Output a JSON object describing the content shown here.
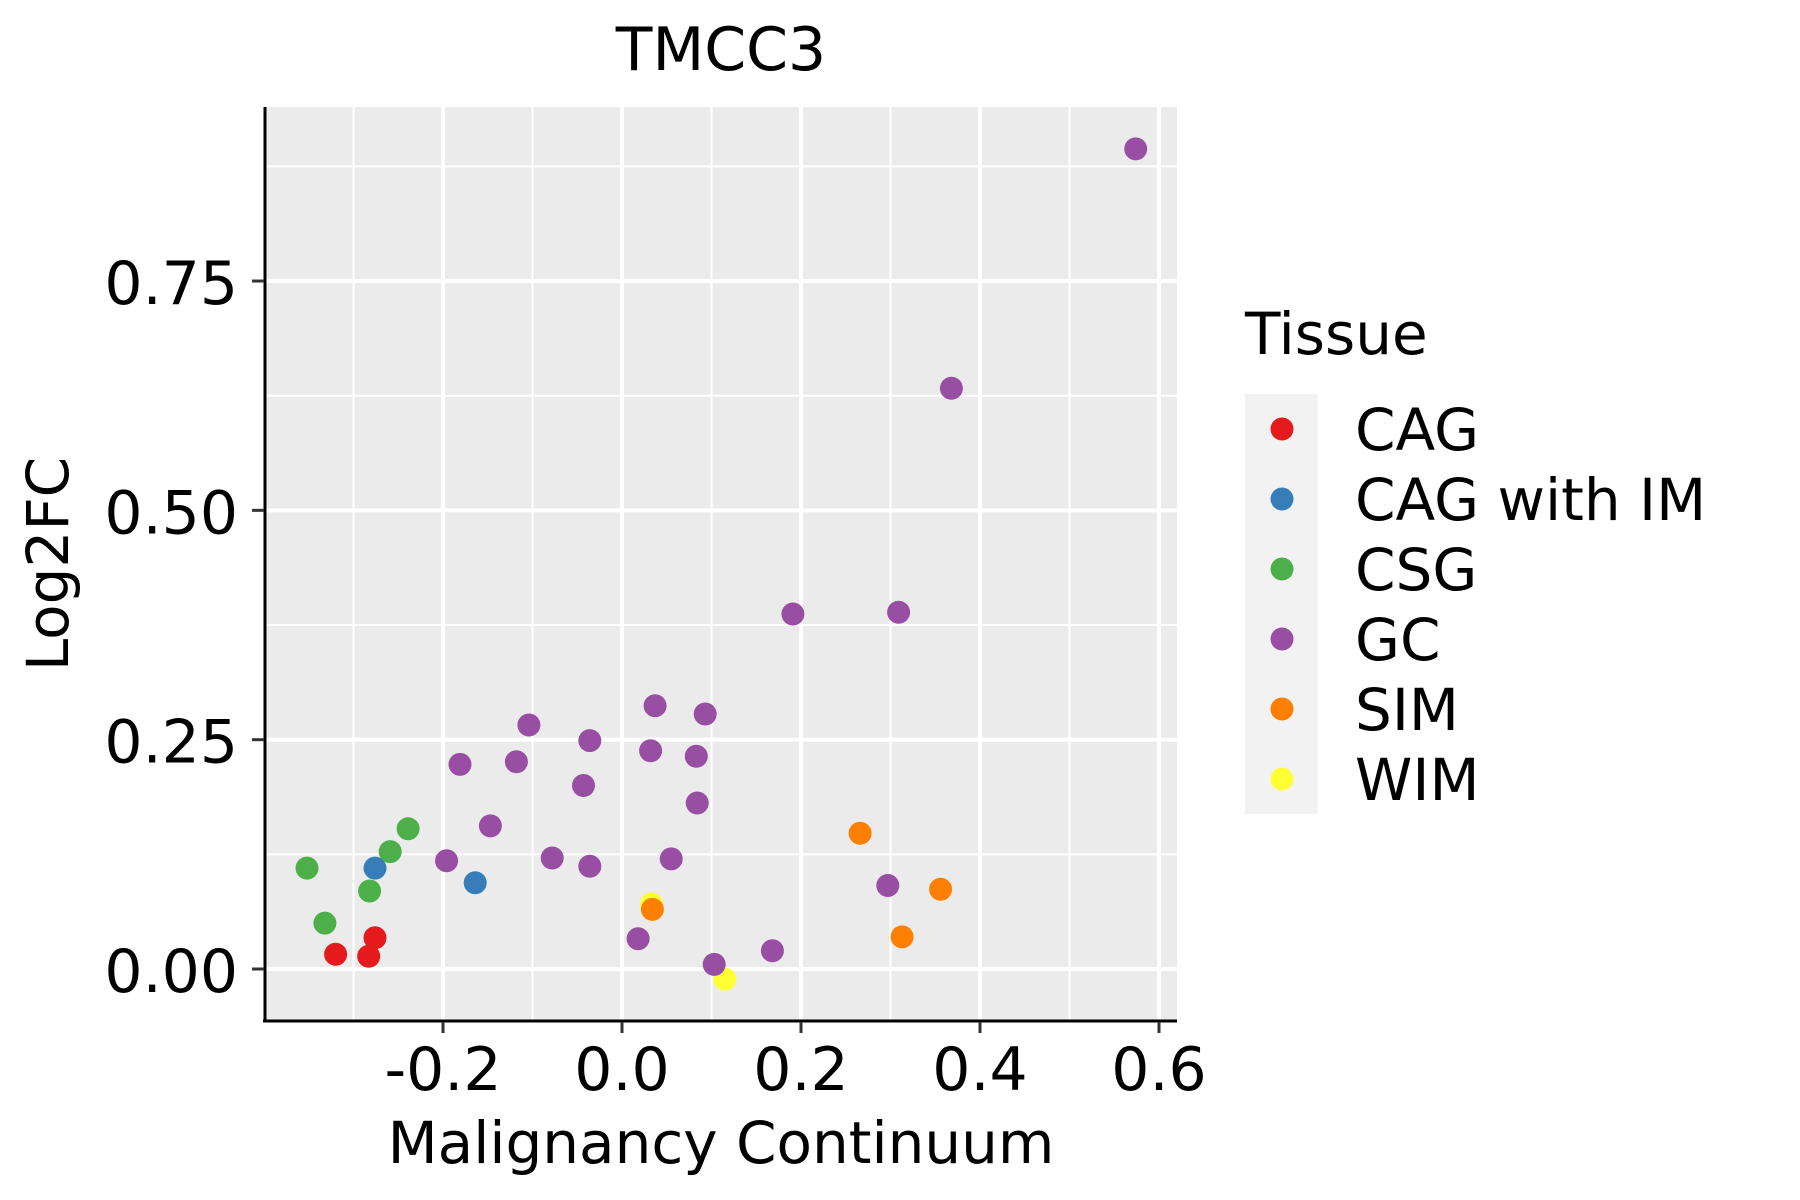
{
  "chart_data": {
    "type": "scatter",
    "title": "TMCC3",
    "xlabel": "Malignancy Continuum",
    "ylabel": "Log2FC",
    "xlim": [
      -0.42,
      0.6
    ],
    "ylim": [
      -0.055,
      0.935
    ],
    "x_ticks": [
      -0.2,
      0.0,
      0.2,
      0.4,
      0.6
    ],
    "x_tick_labels": [
      "-0.2",
      "0.0",
      "0.2",
      "0.4",
      "0.6"
    ],
    "y_ticks": [
      0.0,
      0.25,
      0.5,
      0.75
    ],
    "y_tick_labels": [
      "0.00",
      "0.25",
      "0.50",
      "0.75"
    ],
    "x_minor_grid": [
      -0.3,
      -0.1,
      0.1,
      0.3,
      0.5
    ],
    "y_minor_grid": [
      0.125,
      0.375,
      0.625,
      0.875
    ],
    "grid": true,
    "legend": {
      "title": "Tissue",
      "placement": "right",
      "entries": [
        {
          "name": "CAG",
          "color": "#E41A1C"
        },
        {
          "name": "CAG with IM",
          "color": "#377EB8"
        },
        {
          "name": "CSG",
          "color": "#4DAF4A"
        },
        {
          "name": "GC",
          "color": "#984EA3"
        },
        {
          "name": "SIM",
          "color": "#FF7F00"
        },
        {
          "name": "WIM",
          "color": "#FFFF33"
        }
      ]
    },
    "series": [
      {
        "name": "CAG",
        "color": "#E41A1C",
        "points": [
          [
            -0.32,
            0.016
          ],
          [
            -0.276,
            0.034
          ],
          [
            -0.283,
            0.014
          ]
        ]
      },
      {
        "name": "CAG with IM",
        "color": "#377EB8",
        "points": [
          [
            -0.276,
            0.11
          ],
          [
            -0.164,
            0.094
          ]
        ]
      },
      {
        "name": "CSG",
        "color": "#4DAF4A",
        "points": [
          [
            -0.352,
            0.11
          ],
          [
            -0.332,
            0.05
          ],
          [
            -0.282,
            0.085
          ],
          [
            -0.259,
            0.128
          ],
          [
            -0.239,
            0.153
          ]
        ]
      },
      {
        "name": "GC",
        "color": "#984EA3",
        "points": [
          [
            -0.196,
            0.118
          ],
          [
            -0.147,
            0.156
          ],
          [
            -0.078,
            0.121
          ],
          [
            -0.181,
            0.223
          ],
          [
            -0.118,
            0.226
          ],
          [
            -0.104,
            0.266
          ],
          [
            -0.036,
            0.249
          ],
          [
            -0.043,
            0.2
          ],
          [
            -0.036,
            0.112
          ],
          [
            0.037,
            0.287
          ],
          [
            0.093,
            0.278
          ],
          [
            0.032,
            0.238
          ],
          [
            0.083,
            0.232
          ],
          [
            0.084,
            0.181
          ],
          [
            0.055,
            0.12
          ],
          [
            0.018,
            0.033
          ],
          [
            0.103,
            0.005
          ],
          [
            0.168,
            0.02
          ],
          [
            0.191,
            0.387
          ],
          [
            0.309,
            0.389
          ],
          [
            0.368,
            0.633
          ],
          [
            0.297,
            0.091
          ],
          [
            0.574,
            0.894
          ]
        ]
      },
      {
        "name": "SIM",
        "color": "#FF7F00",
        "points": [
          [
            0.034,
            0.065
          ],
          [
            0.266,
            0.148
          ],
          [
            0.356,
            0.087
          ],
          [
            0.313,
            0.035
          ]
        ]
      },
      {
        "name": "WIM",
        "color": "#FFFF33",
        "points": [
          [
            0.033,
            0.071
          ],
          [
            0.115,
            -0.011
          ]
        ]
      }
    ],
    "draw_order": [
      "WIM_first_at_0.033",
      "SIM_over_WIM"
    ]
  }
}
